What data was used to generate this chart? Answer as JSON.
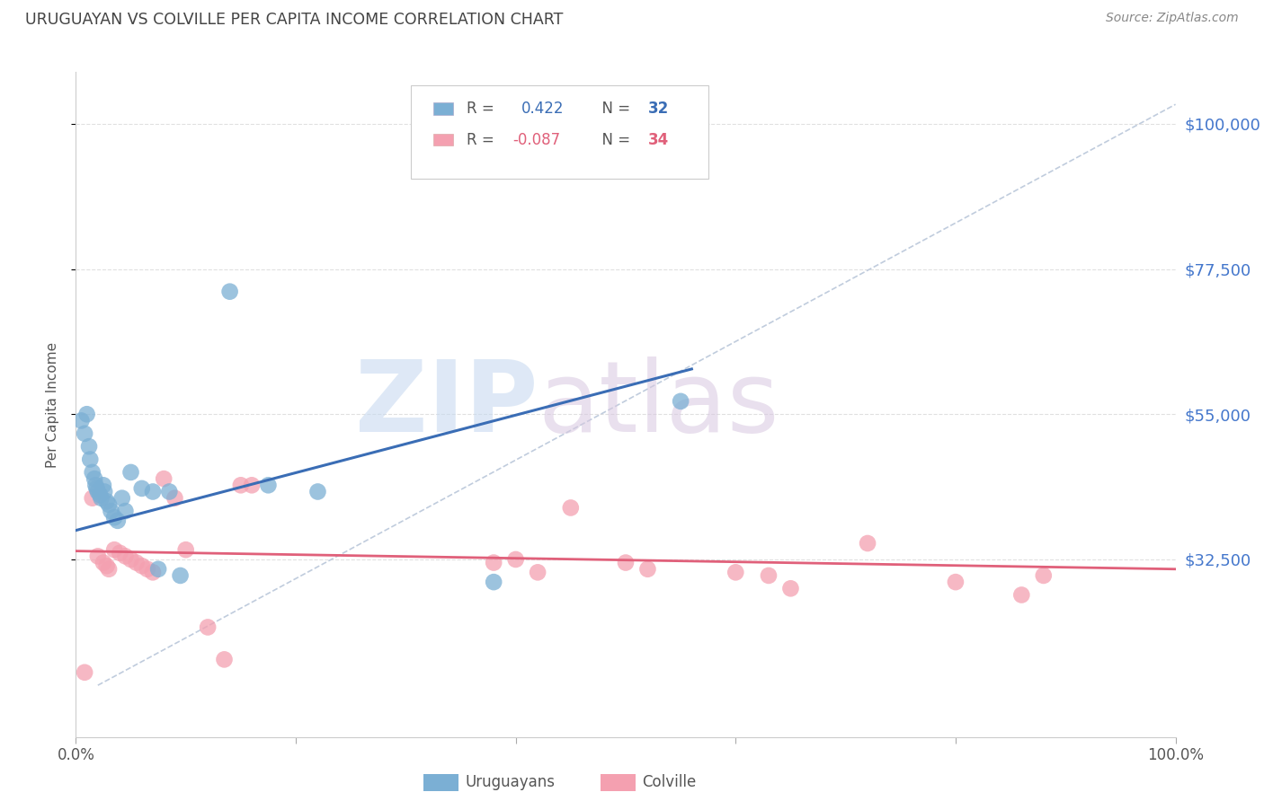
{
  "title": "URUGUAYAN VS COLVILLE PER CAPITA INCOME CORRELATION CHART",
  "source": "Source: ZipAtlas.com",
  "ylabel": "Per Capita Income",
  "right_ytick_labels": [
    "$100,000",
    "$77,500",
    "$55,000",
    "$32,500"
  ],
  "right_ytick_values": [
    100000,
    77500,
    55000,
    32500
  ],
  "ylim": [
    5000,
    108000
  ],
  "xlim": [
    0.0,
    1.0
  ],
  "background_color": "#ffffff",
  "blue_color": "#7bafd4",
  "pink_color": "#f4a0b0",
  "blue_line_color": "#3a6db5",
  "pink_line_color": "#e0607a",
  "dashed_line_color": "#c0ccdd",
  "grid_color": "#e0e0e0",
  "title_color": "#444444",
  "label_color": "#555555",
  "right_axis_color": "#4477cc",
  "uruguayans_x": [
    0.005,
    0.008,
    0.01,
    0.012,
    0.013,
    0.015,
    0.017,
    0.018,
    0.019,
    0.02,
    0.022,
    0.023,
    0.025,
    0.026,
    0.028,
    0.03,
    0.032,
    0.035,
    0.038,
    0.042,
    0.045,
    0.05,
    0.06,
    0.07,
    0.075,
    0.085,
    0.095,
    0.14,
    0.175,
    0.22,
    0.38,
    0.55
  ],
  "uruguayans_y": [
    54000,
    52000,
    55000,
    50000,
    48000,
    46000,
    45000,
    44000,
    43500,
    43000,
    42500,
    42000,
    44000,
    43000,
    41500,
    41000,
    40000,
    39000,
    38500,
    42000,
    40000,
    46000,
    43500,
    43000,
    31000,
    43000,
    30000,
    74000,
    44000,
    43000,
    29000,
    57000
  ],
  "colville_x": [
    0.008,
    0.015,
    0.02,
    0.025,
    0.028,
    0.03,
    0.035,
    0.04,
    0.045,
    0.05,
    0.055,
    0.06,
    0.065,
    0.07,
    0.08,
    0.09,
    0.1,
    0.12,
    0.135,
    0.15,
    0.16,
    0.38,
    0.4,
    0.42,
    0.45,
    0.5,
    0.52,
    0.6,
    0.63,
    0.65,
    0.72,
    0.8,
    0.86,
    0.88
  ],
  "colville_y": [
    15000,
    42000,
    33000,
    32000,
    31500,
    31000,
    34000,
    33500,
    33000,
    32500,
    32000,
    31500,
    31000,
    30500,
    45000,
    42000,
    34000,
    22000,
    17000,
    44000,
    44000,
    32000,
    32500,
    30500,
    40500,
    32000,
    31000,
    30500,
    30000,
    28000,
    35000,
    29000,
    27000,
    30000
  ],
  "blue_regression_x0": 0.0,
  "blue_regression_x1": 0.56,
  "blue_regression_y0": 37000,
  "blue_regression_y1": 62000,
  "pink_regression_x0": 0.0,
  "pink_regression_x1": 1.0,
  "pink_regression_y0": 33800,
  "pink_regression_y1": 31000,
  "dashed_line_x0": 0.02,
  "dashed_line_x1": 1.0,
  "dashed_line_y0": 13000,
  "dashed_line_y1": 103000,
  "legend_r1_label": "R =  0.422",
  "legend_n1_label": "N = 32",
  "legend_r2_label": "R = -0.087",
  "legend_n2_label": "N = 34",
  "legend_r1_color": "#3a6db5",
  "legend_r2_color": "#e0607a",
  "legend_n_color": "#333333"
}
